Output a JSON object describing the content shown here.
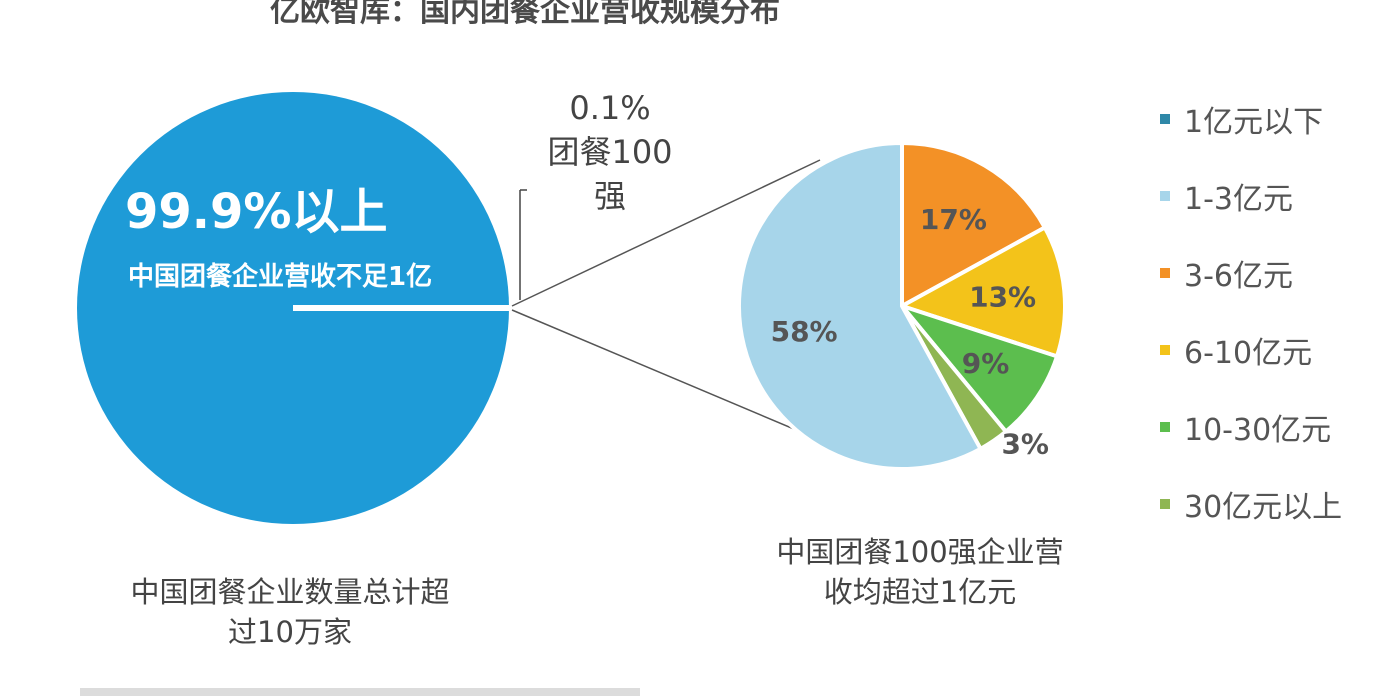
{
  "page": {
    "title": "亿欧智库：国内团餐企业营收规模分布"
  },
  "main_pie": {
    "big_label": "99.9%以上",
    "sub_label": "中国团餐企业营收不足1亿",
    "callout_pct": "0.1%",
    "callout_text": "团餐100强",
    "caption": "中国团餐企业数量总计超过10万家",
    "color": "#1e9bd7"
  },
  "sub_pie": {
    "caption": "中国团餐100强企业营收均超过1亿元"
  },
  "legend": [
    {
      "label": "1亿元以下",
      "color": "#2f88a8"
    },
    {
      "label": "1-3亿元",
      "color": "#a7d5ea"
    },
    {
      "label": "3-6亿元",
      "color": "#f39126"
    },
    {
      "label": "6-10亿元",
      "color": "#f3c31a"
    },
    {
      "label": "10-30亿元",
      "color": "#5cbe4e"
    },
    {
      "label": "30亿元以上",
      "color": "#8fb653"
    }
  ],
  "chart_data": [
    {
      "type": "pie",
      "slices": [
        {
          "label": "团餐企业营收不足1亿",
          "value": 99.9,
          "color": "#1e9bd7"
        },
        {
          "label": "团餐100强",
          "value": 0.1,
          "color": "#1e9bd7"
        }
      ]
    },
    {
      "type": "pie",
      "slices": [
        {
          "label": "1-3亿元",
          "value": 58,
          "value_label": "58%",
          "color": "#a7d5ea"
        },
        {
          "label": "3-6亿元",
          "value": 17,
          "value_label": "17%",
          "color": "#f39126"
        },
        {
          "label": "6-10亿元",
          "value": 13,
          "value_label": "13%",
          "color": "#f3c31a"
        },
        {
          "label": "10-30亿元",
          "value": 9,
          "value_label": "9%",
          "color": "#5cbe4e"
        },
        {
          "label": "30亿元以上",
          "value": 3,
          "value_label": "3%",
          "color": "#8fb653"
        }
      ]
    }
  ]
}
